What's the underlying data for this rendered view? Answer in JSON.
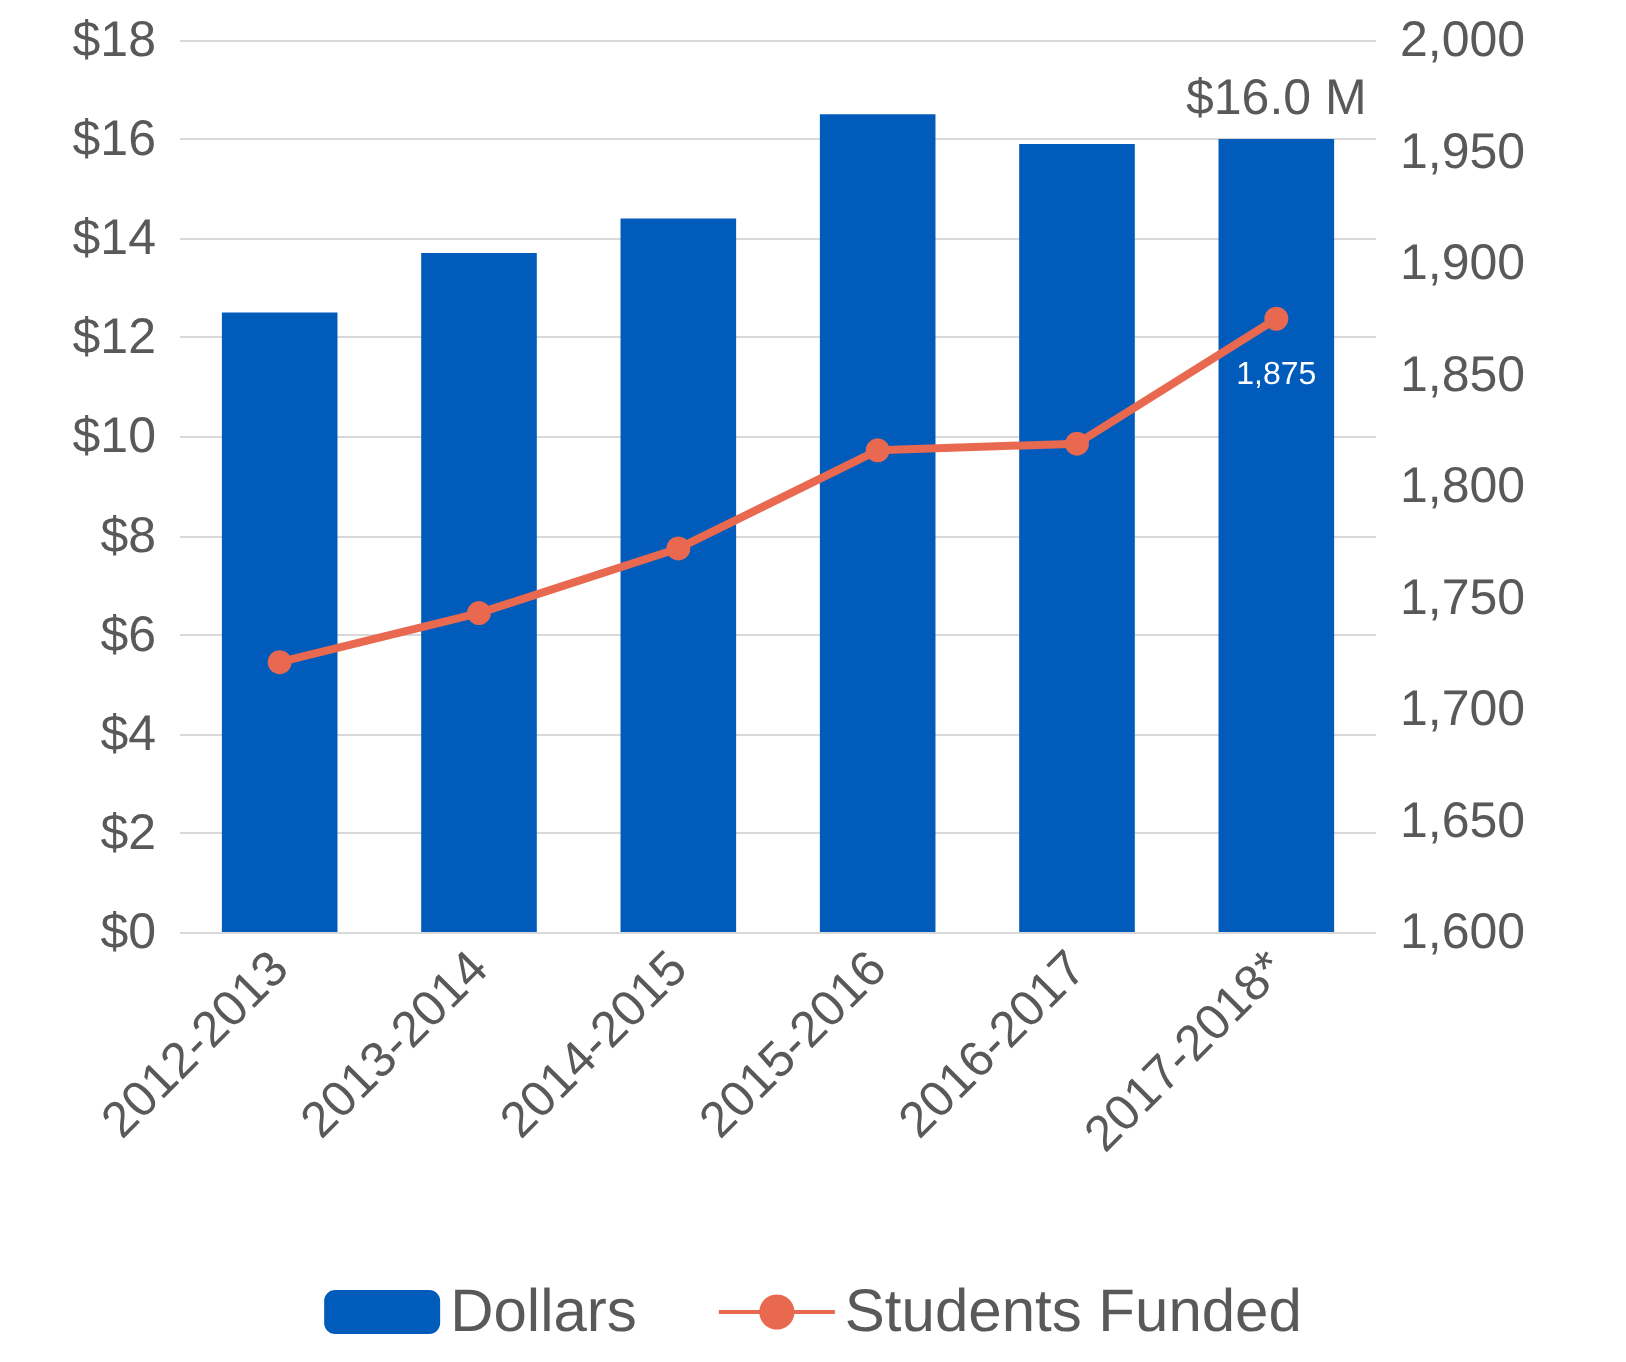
{
  "chart_data": {
    "type": "bar",
    "categories": [
      "2012-2013",
      "2013-2014",
      "2014-2015",
      "2015-2016",
      "2016-2017",
      "2017-2018*"
    ],
    "series": [
      {
        "name": "Dollars",
        "color": "#005bbb",
        "values": [
          12.5,
          13.7,
          14.4,
          16.5,
          15.9,
          16.0
        ],
        "value_labels": [
          null,
          null,
          null,
          null,
          null,
          "$16.0 M"
        ]
      },
      {
        "name": "Students Funded",
        "type": "line",
        "axis": "y2",
        "color": "#e8694f",
        "marker": "circle",
        "values": [
          1721,
          1743,
          1772,
          1816,
          1819,
          1875
        ],
        "value_labels": [
          null,
          null,
          null,
          null,
          null,
          "1,875"
        ]
      }
    ],
    "ylim": [
      0,
      18
    ],
    "yticks": [
      {
        "value": 0,
        "label": "$0"
      },
      {
        "value": 2,
        "label": "$2"
      },
      {
        "value": 4,
        "label": "$4"
      },
      {
        "value": 6,
        "label": "$6"
      },
      {
        "value": 8,
        "label": "$8"
      },
      {
        "value": 10,
        "label": "$10"
      },
      {
        "value": 12,
        "label": "$12"
      },
      {
        "value": 14,
        "label": "$14"
      },
      {
        "value": 16,
        "label": "$16"
      },
      {
        "value": 18,
        "label": "$18"
      }
    ],
    "y2lim": [
      1600,
      2000
    ],
    "y2ticks": [
      {
        "value": 1600,
        "label": "1,600"
      },
      {
        "value": 1650,
        "label": "1,650"
      },
      {
        "value": 1700,
        "label": "1,700"
      },
      {
        "value": 1750,
        "label": "1,750"
      },
      {
        "value": 1800,
        "label": "1,800"
      },
      {
        "value": 1850,
        "label": "1,850"
      },
      {
        "value": 1900,
        "label": "1,900"
      },
      {
        "value": 1950,
        "label": "1,950"
      },
      {
        "value": 2000,
        "label": "2,000"
      }
    ],
    "grid": "y",
    "legend": "bottom"
  }
}
